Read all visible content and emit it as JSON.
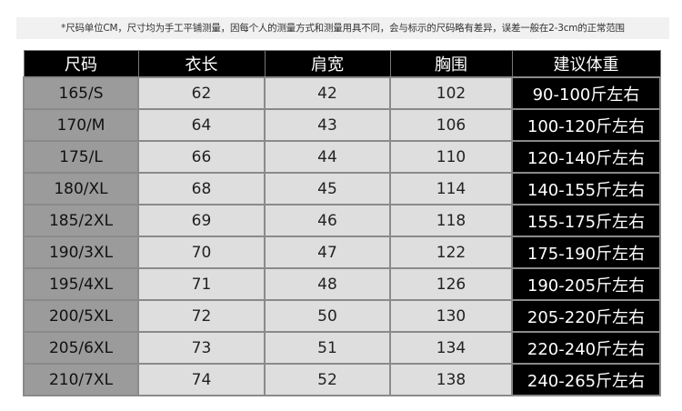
{
  "note": "*尺码单位CM，尺寸均为手工平铺测量，因每个人的测量方式和测量用具不同，会与标示的尺码略有差异，误差一般在2-3cm的正常范围",
  "headers": [
    "尺码",
    "衣长",
    "肩宽",
    "胸围",
    "建议体重"
  ],
  "rows": [
    [
      "165/S",
      "62",
      "42",
      "102",
      "90-100斤左右"
    ],
    [
      "170/M",
      "64",
      "43",
      "106",
      "100-120斤左右"
    ],
    [
      "175/L",
      "66",
      "44",
      "110",
      "120-140斤左右"
    ],
    [
      "180/XL",
      "68",
      "45",
      "114",
      "140-155斤左右"
    ],
    [
      "185/2XL",
      "69",
      "46",
      "118",
      "155-175斤左右"
    ],
    [
      "190/3XL",
      "70",
      "47",
      "122",
      "175-190斤左右"
    ],
    [
      "195/4XL",
      "71",
      "48",
      "126",
      "190-205斤左右"
    ],
    [
      "200/5XL",
      "72",
      "50",
      "130",
      "205-220斤左右"
    ],
    [
      "205/6XL",
      "73",
      "51",
      "134",
      "220-240斤左右"
    ],
    [
      "210/7XL",
      "74",
      "52",
      "138",
      "240-265斤左右"
    ]
  ]
}
